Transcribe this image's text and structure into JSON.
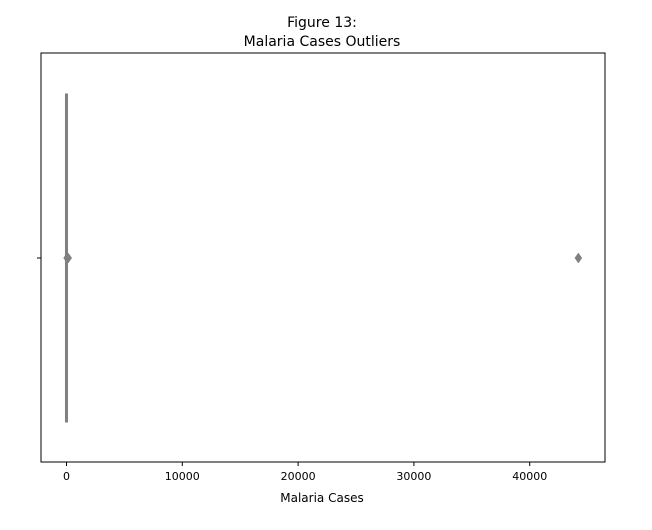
{
  "chart_data": {
    "type": "box",
    "title_lines": [
      "Figure 13:",
      "Malaria Cases Outliers"
    ],
    "xlabel": "Malaria Cases",
    "ylabel": "",
    "xlim": [
      -2200,
      46500
    ],
    "xticks": [
      0,
      10000,
      20000,
      30000,
      40000
    ],
    "grid": false,
    "orientation": "horizontal",
    "box": {
      "q1": 0,
      "median": 0,
      "q3": 0,
      "whisker_low": 0,
      "whisker_high": 0
    },
    "outliers": [
      50,
      150,
      44200
    ],
    "colors": {
      "box": "#808080",
      "spine": "#000000"
    }
  }
}
